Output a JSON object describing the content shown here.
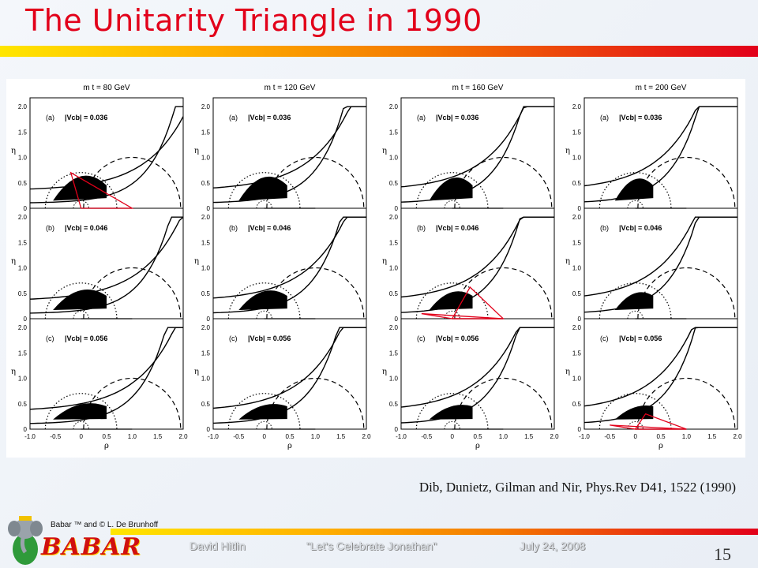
{
  "title": "The Unitarity Triangle in 1990",
  "figure": {
    "columns": [
      {
        "mt_label": "m t = 80 GeV"
      },
      {
        "mt_label": "m t = 120 GeV"
      },
      {
        "mt_label": "m t = 160 GeV"
      },
      {
        "mt_label": "m t = 200 GeV"
      }
    ],
    "rows": [
      {
        "label": "(a)",
        "vcb_text": "|Vcb| = 0.036"
      },
      {
        "label": "(b)",
        "vcb_text": "|Vcb| = 0.046"
      },
      {
        "label": "(c)",
        "vcb_text": "|Vcb| = 0.056"
      }
    ],
    "y_axis_label": "η",
    "x_axis_label": "ρ",
    "y_ticks": [
      "2.0",
      "1.5",
      "1.0",
      "0.5",
      "0"
    ],
    "x_ticks": [
      "-1.0",
      "-0.5",
      "0",
      "0.5",
      "1.0",
      "1.5",
      "2.0"
    ]
  },
  "caption": "Dib, Dunietz, Gilman and Nir, Phys.Rev D41, 1522 (1990)",
  "credit": "Babar ™ and © L. De Brunhoff",
  "logo_text": "BABAR",
  "footer": {
    "author": "David Hitlin",
    "event": "\"Let's Celebrate Jonathan\"",
    "date": "July 24, 2008"
  },
  "page_number": "15",
  "colors": {
    "title": "#e2001a",
    "accent": "#e2001a"
  }
}
